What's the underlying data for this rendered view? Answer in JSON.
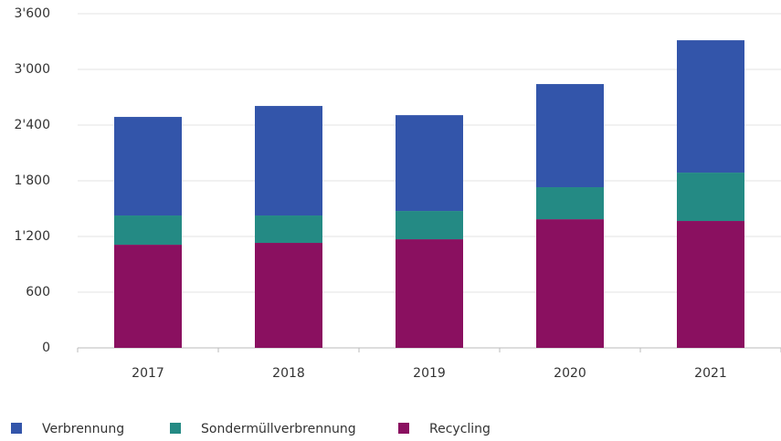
{
  "chart_data": {
    "type": "stacked_bar",
    "categories": [
      "2017",
      "2018",
      "2019",
      "2020",
      "2021"
    ],
    "series": [
      {
        "name": "Verbrennung",
        "color": "#3355aa",
        "values": [
          1062,
          1180,
          1032,
          1111,
          1426
        ]
      },
      {
        "name": "Sondermüllverbrennung",
        "color": "#248a84",
        "values": [
          315,
          295,
          305,
          345,
          521
        ]
      },
      {
        "name": "Recycling",
        "color": "#8a1060",
        "values": [
          1111,
          1131,
          1170,
          1386,
          1367
        ]
      }
    ],
    "ylim": [
      0,
      3600
    ],
    "yticks": [
      0,
      600,
      {
        "value": 1200,
        "label": "1'200"
      },
      {
        "value": 1800,
        "label": "1'800"
      },
      {
        "value": 2400,
        "label": "2'400"
      },
      {
        "value": 3000,
        "label": "3'000"
      },
      {
        "value": 3600,
        "label": "3'600"
      }
    ],
    "grid": true,
    "legend": "bottom"
  }
}
